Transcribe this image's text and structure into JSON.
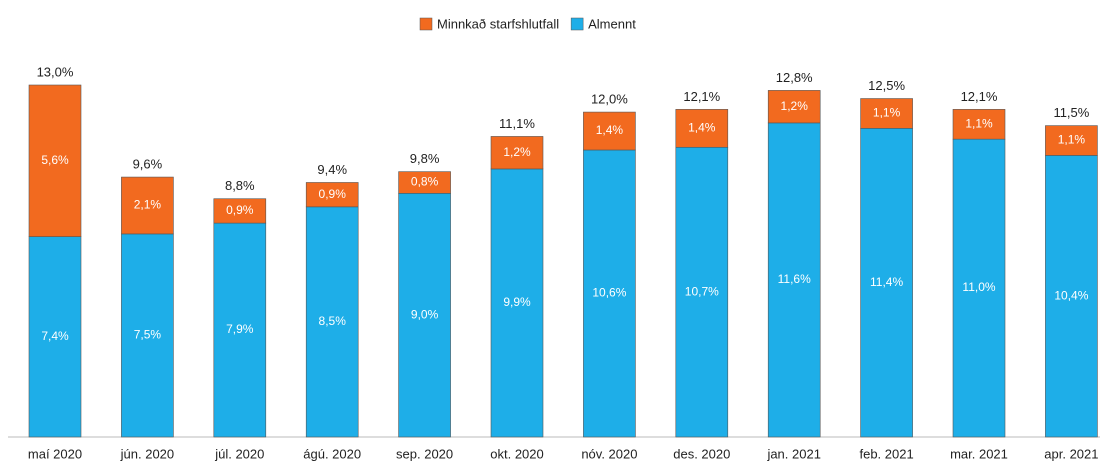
{
  "chart_data": {
    "type": "stacked_bar",
    "categories": [
      "maí 2020",
      "jún. 2020",
      "júl. 2020",
      "ágú. 2020",
      "sep. 2020",
      "okt. 2020",
      "nóv. 2020",
      "des. 2020",
      "jan. 2021",
      "feb. 2021",
      "mar. 2021",
      "apr. 2021"
    ],
    "series": [
      {
        "name": "Almennt",
        "color": "#1eaee8",
        "values": [
          7.4,
          7.5,
          7.9,
          8.5,
          9.0,
          9.9,
          10.6,
          10.7,
          11.6,
          11.4,
          11.0,
          10.4
        ],
        "value_labels": [
          "7,4%",
          "7,5%",
          "7,9%",
          "8,5%",
          "9,0%",
          "9,9%",
          "10,6%",
          "10,7%",
          "11,6%",
          "11,4%",
          "11,0%",
          "10,4%"
        ]
      },
      {
        "name": "Minnkað starfshlutfall",
        "color": "#f26a1f",
        "values": [
          5.6,
          2.1,
          0.9,
          0.9,
          0.8,
          1.2,
          1.4,
          1.4,
          1.2,
          1.1,
          1.1,
          1.1
        ],
        "value_labels": [
          "5,6%",
          "2,1%",
          "0,9%",
          "0,9%",
          "0,8%",
          "1,2%",
          "1,4%",
          "1,4%",
          "1,2%",
          "1,1%",
          "1,1%",
          "1,1%"
        ]
      }
    ],
    "totals": [
      13.0,
      9.6,
      8.8,
      9.4,
      9.8,
      11.1,
      12.0,
      12.1,
      12.8,
      12.5,
      12.1,
      11.5
    ],
    "total_labels": [
      "13,0%",
      "9,6%",
      "8,8%",
      "9,4%",
      "9,8%",
      "11,1%",
      "12,0%",
      "12,1%",
      "12,8%",
      "12,5%",
      "12,1%",
      "11,5%"
    ],
    "legend": "top"
  }
}
